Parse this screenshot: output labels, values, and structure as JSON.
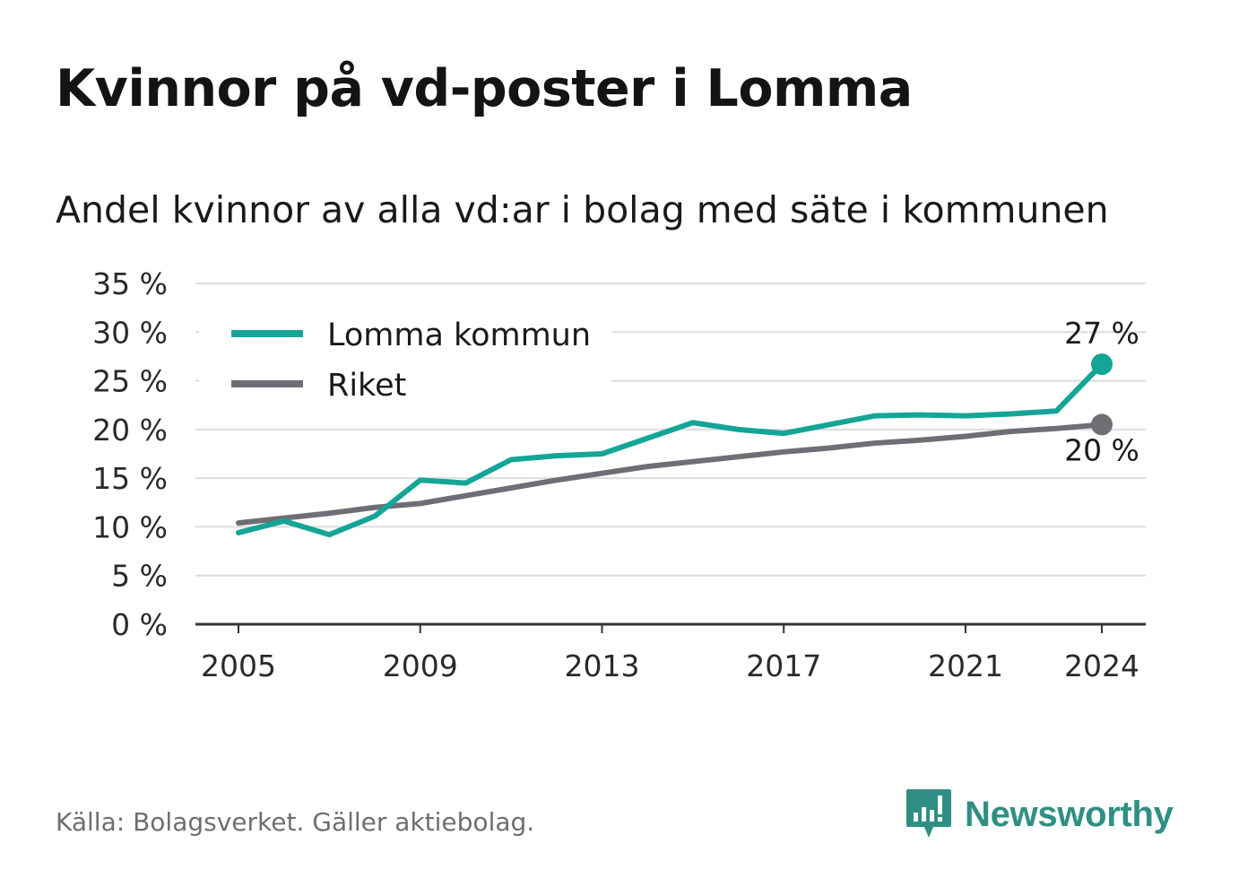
{
  "title": "Kvinnor på vd-poster i Lomma",
  "subtitle": "Andel kvinnor av alla vd:ar i bolag med säte i kommunen",
  "source": "Källa: Bolagsverket. Gäller aktiebolag.",
  "brand": {
    "name": "Newsworthy",
    "icon": "newsworthy-logo-icon",
    "color": "#2f8f84"
  },
  "chart_data": {
    "type": "line",
    "x": [
      2005,
      2006,
      2007,
      2008,
      2009,
      2010,
      2011,
      2012,
      2013,
      2014,
      2015,
      2016,
      2017,
      2018,
      2019,
      2020,
      2021,
      2022,
      2023,
      2024
    ],
    "x_tick_labels": [
      "2005",
      "2009",
      "2013",
      "2017",
      "2021",
      "2024"
    ],
    "x_ticks": [
      2005,
      2009,
      2013,
      2017,
      2021,
      2024
    ],
    "y_tick_labels": [
      "0 %",
      "5 %",
      "10 %",
      "15 %",
      "20 %",
      "25 %",
      "30 %",
      "35 %"
    ],
    "y_ticks": [
      0,
      5,
      10,
      15,
      20,
      25,
      30,
      35
    ],
    "ylim": [
      0,
      35
    ],
    "grid": true,
    "legend_position": "top-left",
    "series": [
      {
        "name": "Lomma kommun",
        "color": "#14a597",
        "values": [
          9.4,
          10.6,
          9.2,
          11.1,
          14.8,
          14.5,
          16.9,
          17.3,
          17.5,
          19.1,
          20.7,
          20.0,
          19.6,
          20.5,
          21.4,
          21.5,
          21.4,
          21.6,
          21.9,
          26.7
        ],
        "end_label": "27 %"
      },
      {
        "name": "Riket",
        "color": "#6f6e74",
        "values": [
          10.4,
          10.9,
          11.4,
          12.0,
          12.4,
          13.2,
          14.0,
          14.8,
          15.5,
          16.2,
          16.7,
          17.2,
          17.7,
          18.1,
          18.6,
          18.9,
          19.3,
          19.8,
          20.1,
          20.5
        ],
        "end_label": "20 %"
      }
    ]
  }
}
